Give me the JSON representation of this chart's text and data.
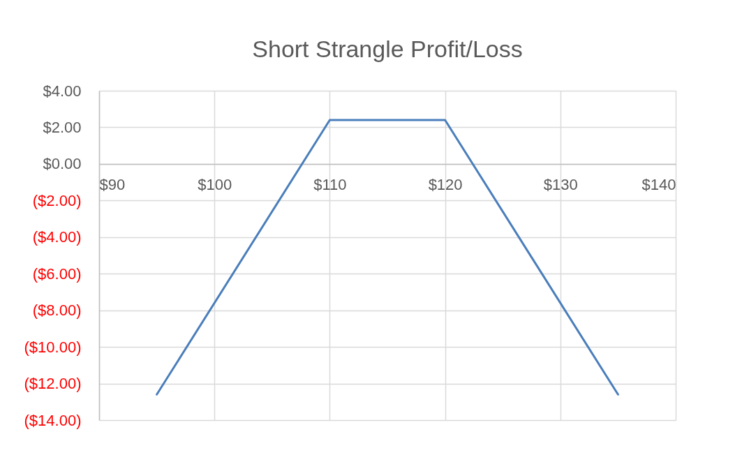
{
  "chart_data": {
    "type": "line",
    "title": "Short Strangle Profit/Loss",
    "x": [
      95,
      110,
      120,
      135
    ],
    "series": [
      {
        "color": "#4a7ebb",
        "values": [
          -12.6,
          2.4,
          2.4,
          -12.6
        ]
      }
    ],
    "xlim": [
      90,
      140
    ],
    "xticks": [
      {
        "value": 90,
        "label": "$90"
      },
      {
        "value": 100,
        "label": "$100"
      },
      {
        "value": 110,
        "label": "$110"
      },
      {
        "value": 120,
        "label": "$120"
      },
      {
        "value": 130,
        "label": "$130"
      },
      {
        "value": 140,
        "label": "$140"
      }
    ],
    "ylim": [
      -14,
      4
    ],
    "yticks": [
      {
        "value": 4,
        "label": "$4.00"
      },
      {
        "value": 2,
        "label": "$2.00"
      },
      {
        "value": 0,
        "label": "$0.00"
      },
      {
        "value": -2,
        "label": "($2.00)"
      },
      {
        "value": -4,
        "label": "($4.00)"
      },
      {
        "value": -6,
        "label": "($6.00)"
      },
      {
        "value": -8,
        "label": "($8.00)"
      },
      {
        "value": -10,
        "label": "($10.00)"
      },
      {
        "value": -12,
        "label": "($12.00)"
      },
      {
        "value": -14,
        "label": "($14.00)"
      }
    ],
    "grid": true,
    "line_style": "solid"
  }
}
